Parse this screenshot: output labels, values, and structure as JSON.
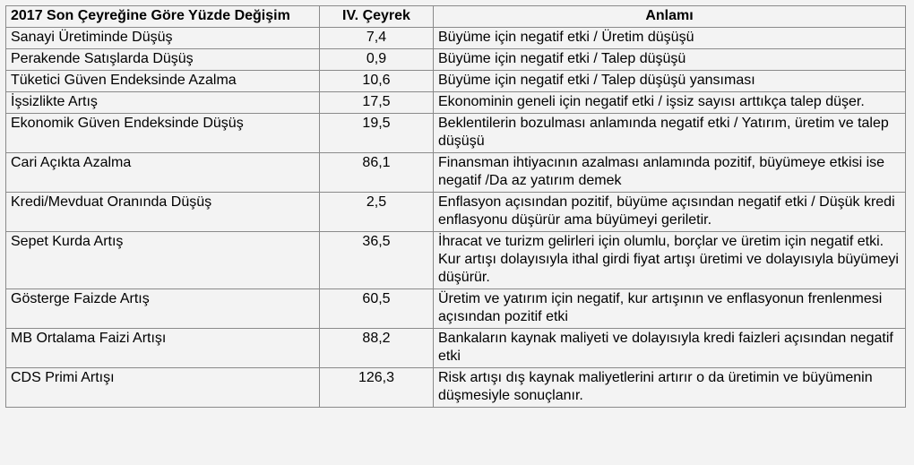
{
  "table": {
    "headers": [
      "2017 Son Çeyreğine Göre Yüzde Değişim",
      "IV. Çeyrek",
      "Anlamı"
    ],
    "rows": [
      {
        "label": "Sanayi Üretiminde Düşüş",
        "value": "7,4",
        "meaning": "Büyüme için negatif etki / Üretim düşüşü"
      },
      {
        "label": "Perakende Satışlarda Düşüş",
        "value": "0,9",
        "meaning": "Büyüme için negatif etki / Talep düşüşü"
      },
      {
        "label": "Tüketici Güven Endeksinde Azalma",
        "value": "10,6",
        "meaning": "Büyüme için negatif etki / Talep düşüşü yansıması"
      },
      {
        "label": "İşsizlikte Artış",
        "value": "17,5",
        "meaning": "Ekonominin geneli için negatif etki / işsiz sayısı arttıkça talep düşer."
      },
      {
        "label": "Ekonomik Güven Endeksinde Düşüş",
        "value": "19,5",
        "meaning": "Beklentilerin bozulması anlamında negatif etki / Yatırım, üretim ve talep düşüşü"
      },
      {
        "label": "Cari Açıkta Azalma",
        "value": "86,1",
        "meaning": "Finansman ihtiyacının azalması anlamında pozitif, büyümeye etkisi ise negatif /Da az yatırım demek"
      },
      {
        "label": "Kredi/Mevduat Oranında Düşüş",
        "value": "2,5",
        "meaning": "Enflasyon açısından pozitif, büyüme açısından negatif etki / Düşük kredi enflasyonu düşürür ama büyümeyi geriletir."
      },
      {
        "label": "Sepet Kurda Artış",
        "value": "36,5",
        "meaning": "İhracat ve turizm gelirleri için olumlu, borçlar ve üretim için negatif etki. Kur artışı dolayısıyla ithal girdi fiyat artışı üretimi ve dolayısıyla büyümeyi düşürür."
      },
      {
        "label": "Gösterge Faizde Artış",
        "value": "60,5",
        "meaning": "Üretim ve yatırım için negatif, kur artışının ve enflasyonun frenlenmesi açısından pozitif etki"
      },
      {
        "label": "MB Ortalama Faizi Artışı",
        "value": "88,2",
        "meaning": "Bankaların kaynak maliyeti ve dolayısıyla kredi faizleri açısından negatif etki"
      },
      {
        "label": "CDS Primi Artışı",
        "value": "126,3",
        "meaning": "Risk artışı dış kaynak maliyetlerini artırır o da üretimin ve büyümenin düşmesiyle sonuçlanır."
      }
    ]
  }
}
